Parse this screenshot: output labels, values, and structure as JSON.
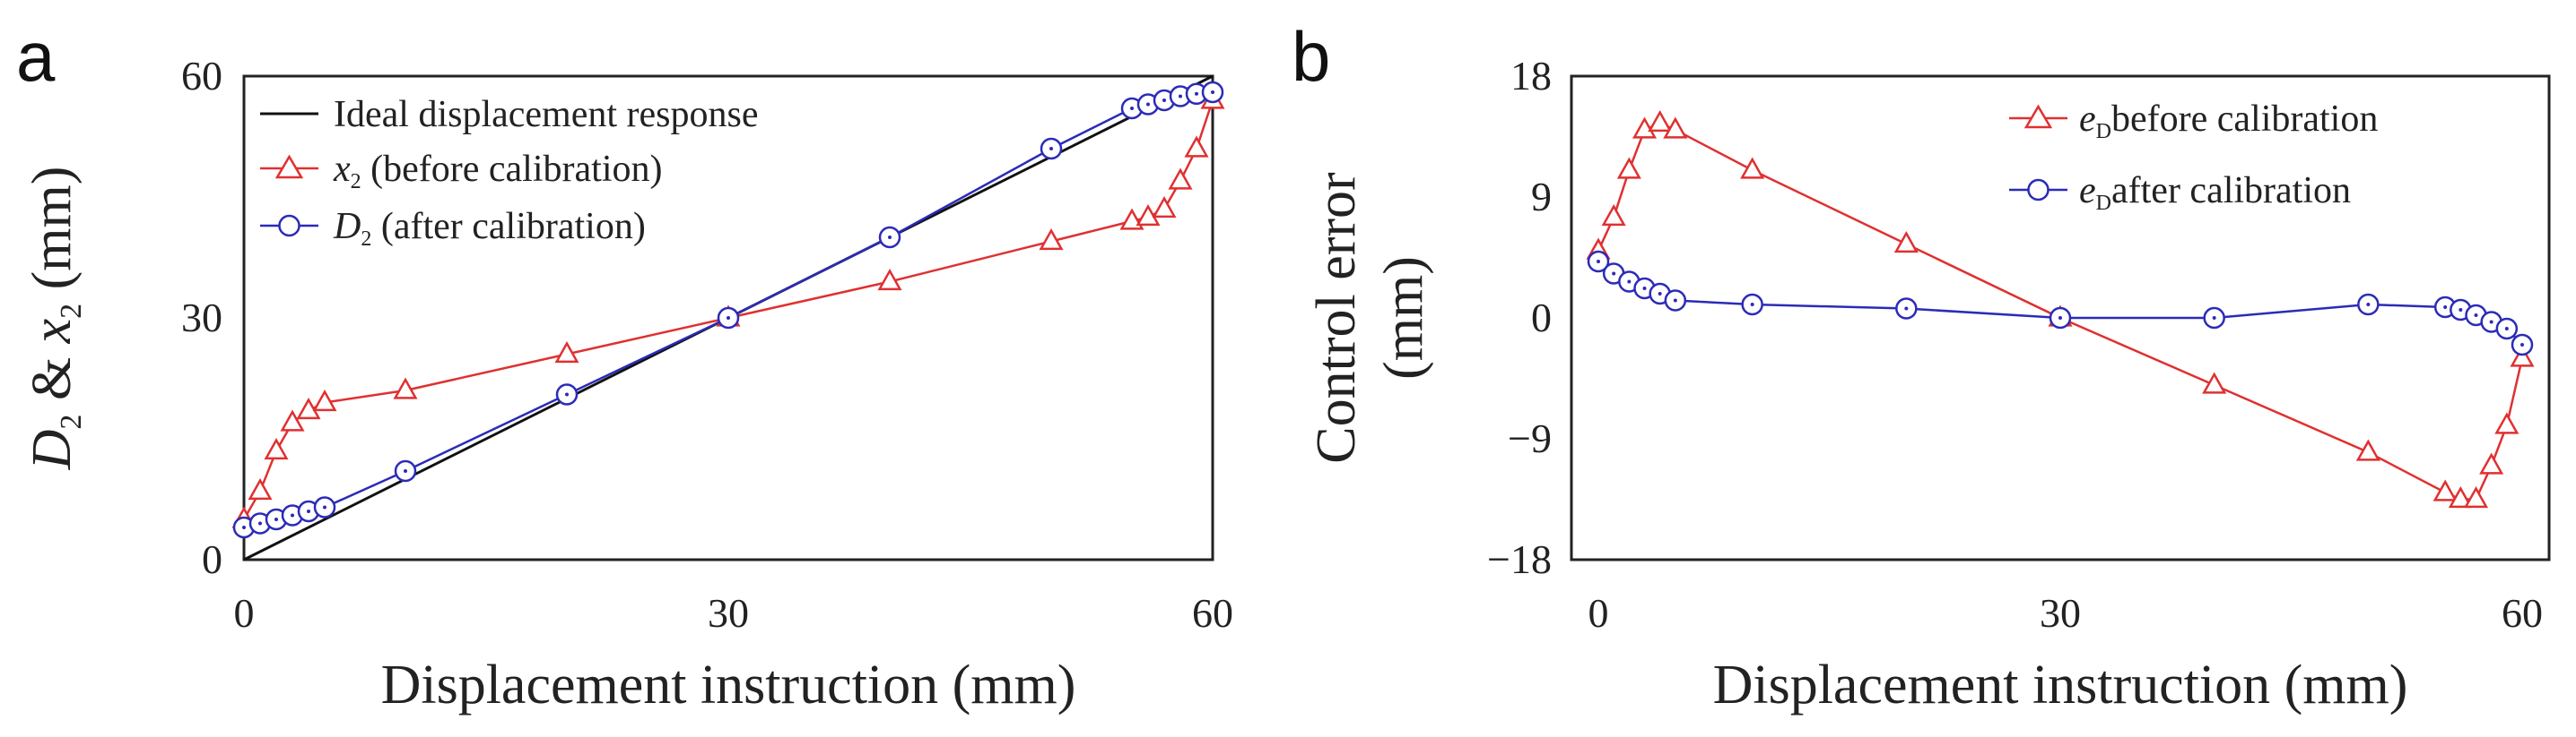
{
  "panels": [
    {
      "letter": "a",
      "xlabel": "Displacement instruction (mm)",
      "ylabel_parts": [
        "D",
        "2",
        " & ",
        "x",
        "2",
        " (mm)"
      ],
      "xticks": [
        "0",
        "30",
        "60"
      ],
      "yticks": [
        "0",
        "30",
        "60"
      ],
      "legend": [
        {
          "main": "Ideal displacement response",
          "sub": "",
          "rest": ""
        },
        {
          "main": "x",
          "sub": "2",
          "rest": " (before calibration)"
        },
        {
          "main": "D",
          "sub": "2",
          "rest": "  (after calibration)"
        }
      ]
    },
    {
      "letter": "b",
      "xlabel": "Displacement instruction (mm)",
      "ylabel_line1": "Control error",
      "ylabel_line2": "(mm)",
      "xticks": [
        "0",
        "30",
        "60"
      ],
      "yticks": [
        "−18",
        "−9",
        "0",
        "9",
        "18"
      ],
      "legend": [
        {
          "main": "e",
          "sub": "D",
          "rest": "before calibration"
        },
        {
          "main": "e",
          "sub": "D",
          "rest": "after calibration"
        }
      ]
    }
  ],
  "chart_data": [
    {
      "type": "line",
      "xlim": [
        0,
        60
      ],
      "ylim": [
        0,
        60
      ],
      "grid": false,
      "legend_position": "top-left",
      "series": [
        {
          "name": "Ideal displacement response",
          "color": "#111111",
          "marker": "none",
          "x": [
            0,
            60
          ],
          "y": [
            0,
            60
          ]
        },
        {
          "name": "x2 (before calibration)",
          "color": "#e03030",
          "marker": "triangle",
          "x": [
            0,
            1,
            2,
            3,
            4,
            5,
            10,
            20,
            30,
            40,
            50,
            55,
            56,
            57,
            58,
            59,
            60
          ],
          "y": [
            5,
            8.5,
            13.5,
            17,
            18.5,
            19.5,
            21,
            25.5,
            30,
            34.5,
            39.5,
            42,
            42.5,
            43.5,
            47,
            51,
            57
          ]
        },
        {
          "name": "D2 (after calibration)",
          "color": "#2b2bb8",
          "marker": "circle",
          "x": [
            0,
            1,
            2,
            3,
            4,
            5,
            10,
            20,
            30,
            40,
            50,
            55,
            56,
            57,
            58,
            59,
            60
          ],
          "y": [
            4,
            4.5,
            5,
            5.5,
            6,
            6.5,
            11,
            20.5,
            30,
            40,
            51,
            56,
            56.5,
            57,
            57.5,
            57.8,
            58
          ]
        }
      ]
    },
    {
      "type": "line",
      "xlim": [
        0,
        60
      ],
      "ylim": [
        -18,
        18
      ],
      "grid": false,
      "legend_position": "top-right",
      "series": [
        {
          "name": "eD before calibration",
          "color": "#e03030",
          "marker": "triangle",
          "x": [
            0,
            1,
            2,
            3,
            4,
            5,
            10,
            20,
            30,
            40,
            50,
            55,
            56,
            57,
            58,
            59,
            60
          ],
          "y": [
            5,
            7.5,
            11,
            14,
            14.5,
            14,
            11,
            5.5,
            0,
            -5,
            -10,
            -13,
            -13.5,
            -13.5,
            -11,
            -8,
            -3
          ]
        },
        {
          "name": "eD after calibration",
          "color": "#2b2bb8",
          "marker": "circle",
          "x": [
            0,
            1,
            2,
            3,
            4,
            5,
            10,
            20,
            30,
            40,
            50,
            55,
            56,
            57,
            58,
            59,
            60
          ],
          "y": [
            4.2,
            3.3,
            2.7,
            2.2,
            1.8,
            1.3,
            1,
            0.7,
            0,
            0,
            1,
            0.8,
            0.6,
            0.2,
            -0.3,
            -0.8,
            -2
          ]
        }
      ]
    }
  ]
}
